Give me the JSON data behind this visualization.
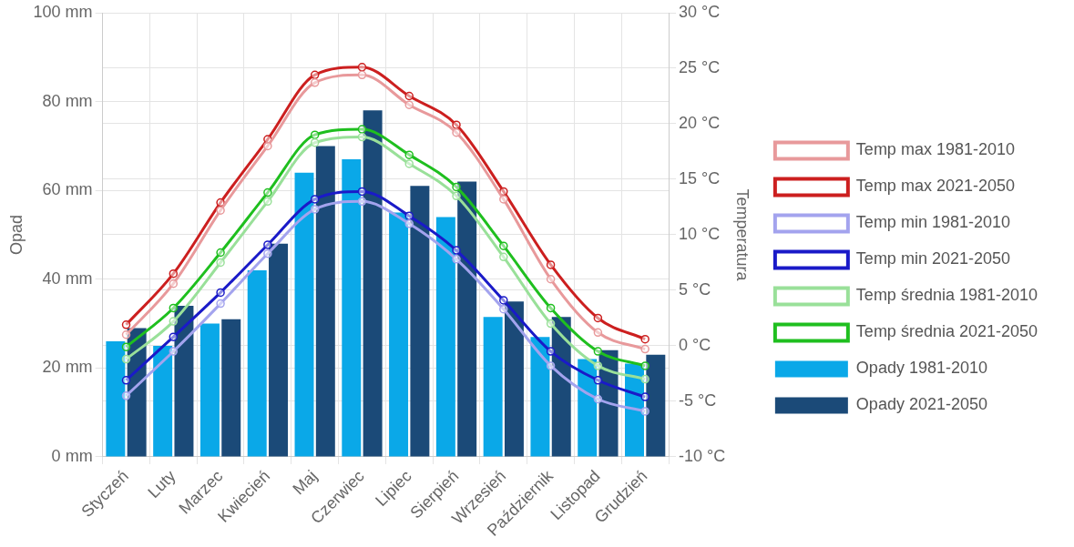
{
  "chart_data": {
    "type": "bar",
    "ylabel": "Opad",
    "y2label": "Temperatura",
    "categories": [
      "Styczeń",
      "Luty",
      "Marzec",
      "Kwiecień",
      "Maj",
      "Czerwiec",
      "Lipiec",
      "Sierpień",
      "Wrzesień",
      "Październik",
      "Listopad",
      "Grudzień"
    ],
    "series": [
      {
        "name": "Temp max 1981-2010",
        "type": "line",
        "axis": "y2",
        "color": "#e8999b",
        "values": [
          1.0,
          5.6,
          12.2,
          18.0,
          23.7,
          24.4,
          21.7,
          19.2,
          13.2,
          6.0,
          1.2,
          -0.3
        ]
      },
      {
        "name": "Temp max 2021-2050",
        "type": "line",
        "axis": "y2",
        "color": "#cc1f1f",
        "values": [
          1.9,
          6.5,
          12.9,
          18.6,
          24.4,
          25.1,
          22.5,
          19.9,
          13.9,
          7.3,
          2.5,
          0.6
        ]
      },
      {
        "name": "Temp min 1981-2010",
        "type": "line",
        "axis": "y2",
        "color": "#a3a3ee",
        "values": [
          -4.5,
          -0.5,
          3.8,
          8.3,
          12.3,
          13.0,
          11.0,
          7.8,
          3.3,
          -1.8,
          -4.8,
          -5.9
        ]
      },
      {
        "name": "Temp min 2021-2050",
        "type": "line",
        "axis": "y2",
        "color": "#1a1ac8",
        "values": [
          -3.1,
          0.8,
          4.8,
          9.1,
          13.2,
          13.9,
          11.7,
          8.6,
          4.1,
          -0.5,
          -3.1,
          -4.6
        ]
      },
      {
        "name": "Temp średnia 1981-2010",
        "type": "line",
        "axis": "y2",
        "color": "#99e099",
        "values": [
          -1.2,
          2.2,
          7.5,
          13.0,
          18.3,
          18.8,
          16.4,
          13.5,
          8.0,
          2.0,
          -1.8,
          -3.0
        ]
      },
      {
        "name": "Temp średnia 2021-2050",
        "type": "line",
        "axis": "y2",
        "color": "#1fbf1f",
        "values": [
          -0.1,
          3.4,
          8.4,
          13.8,
          19.0,
          19.5,
          17.2,
          14.3,
          9.0,
          3.4,
          -0.5,
          -1.8
        ]
      },
      {
        "name": "Opady 1981-2010",
        "color": "#0aa8e8",
        "values": [
          26,
          25,
          30,
          42,
          64,
          67,
          55,
          54,
          31.5,
          27,
          22,
          21
        ]
      },
      {
        "name": "Opady 2021-2050",
        "color": "#1b4a78",
        "values": [
          29,
          34,
          31,
          48,
          70,
          78,
          61,
          62,
          35,
          31.5,
          24,
          23
        ]
      }
    ],
    "ylim": [
      0,
      100
    ],
    "yticks": [
      {
        "value": 0,
        "label": "0 mm"
      },
      {
        "value": 20,
        "label": "20 mm"
      },
      {
        "value": 40,
        "label": "40 mm"
      },
      {
        "value": 60,
        "label": "60 mm"
      },
      {
        "value": 80,
        "label": "80 mm"
      },
      {
        "value": 100,
        "label": "100 mm"
      }
    ],
    "y2lim": [
      -10,
      30
    ],
    "y2ticks": [
      {
        "value": -10,
        "label": "-10 °C"
      },
      {
        "value": -5,
        "label": "-5 °C"
      },
      {
        "value": 0,
        "label": "0 °C"
      },
      {
        "value": 5,
        "label": "5 °C"
      },
      {
        "value": 10,
        "label": "10 °C"
      },
      {
        "value": 15,
        "label": "15 °C"
      },
      {
        "value": 20,
        "label": "20 °C"
      },
      {
        "value": 25,
        "label": "25 °C"
      },
      {
        "value": 30,
        "label": "30 °C"
      }
    ],
    "grid": true,
    "legend": "right",
    "marker": "circle",
    "line_style": "solid"
  }
}
